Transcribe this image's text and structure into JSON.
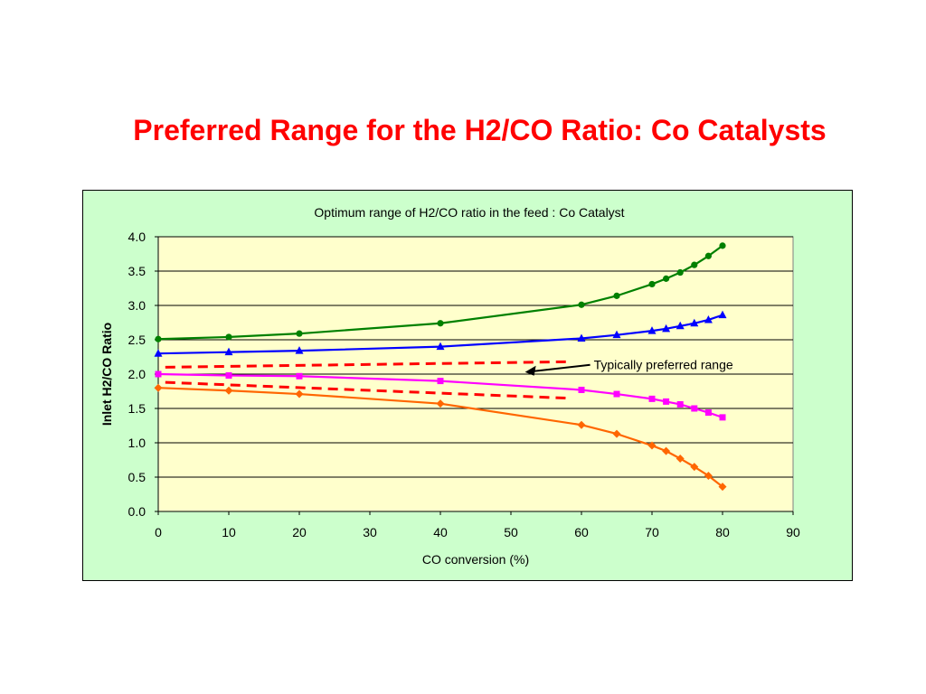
{
  "slide": {
    "title": "Preferred Range for the H2/CO Ratio: Co Catalysts"
  },
  "colors": {
    "title": "#ff0000",
    "frame_background": "#ccffcc",
    "plot_background": "#ffffcc"
  },
  "chart_data": {
    "type": "line",
    "title": "Optimum range of H2/CO ratio in the feed : Co Catalyst",
    "xlabel": "CO conversion (%)",
    "ylabel": "Inlet H2/CO Ratio",
    "xlim": [
      0,
      90
    ],
    "ylim": [
      0,
      4
    ],
    "xticks": [
      "0",
      "10",
      "20",
      "30",
      "40",
      "50",
      "60",
      "70",
      "80",
      "90"
    ],
    "yticks": [
      "0.0",
      "0.5",
      "1.0",
      "1.5",
      "2.0",
      "2.5",
      "3.0",
      "3.5",
      "4.0"
    ],
    "grid": "horizontal",
    "series": [
      {
        "color": "#008000",
        "marker": "circle",
        "x": [
          0,
          10,
          20,
          40,
          60,
          65,
          70,
          72,
          74,
          76,
          78,
          80
        ],
        "y": [
          2.51,
          2.54,
          2.59,
          2.74,
          3.01,
          3.14,
          3.31,
          3.39,
          3.48,
          3.59,
          3.72,
          3.87
        ]
      },
      {
        "color": "#0000ff",
        "marker": "triangle",
        "x": [
          0,
          10,
          20,
          40,
          60,
          65,
          70,
          72,
          74,
          76,
          78,
          80
        ],
        "y": [
          2.3,
          2.32,
          2.34,
          2.4,
          2.52,
          2.57,
          2.63,
          2.66,
          2.7,
          2.74,
          2.79,
          2.86
        ]
      },
      {
        "color": "#ff00ff",
        "marker": "square",
        "x": [
          0,
          10,
          20,
          40,
          60,
          65,
          70,
          72,
          74,
          76,
          78,
          80
        ],
        "y": [
          2.0,
          1.98,
          1.97,
          1.9,
          1.77,
          1.71,
          1.64,
          1.6,
          1.56,
          1.5,
          1.44,
          1.37
        ]
      },
      {
        "color": "#ff6600",
        "marker": "diamond",
        "x": [
          0,
          10,
          20,
          40,
          60,
          65,
          70,
          72,
          74,
          76,
          78,
          80
        ],
        "y": [
          1.8,
          1.76,
          1.71,
          1.57,
          1.26,
          1.13,
          0.96,
          0.88,
          0.77,
          0.65,
          0.52,
          0.36
        ]
      }
    ],
    "preferred_range": {
      "color": "#ff0000",
      "style": "dashed",
      "upper": {
        "x": [
          1,
          58
        ],
        "y": [
          2.1,
          2.18
        ]
      },
      "lower": {
        "x": [
          1,
          58
        ],
        "y": [
          1.88,
          1.65
        ]
      }
    },
    "annotations": [
      {
        "text": "Typically preferred range",
        "arrow_to": {
          "x": 52,
          "y": 2.03
        }
      }
    ]
  }
}
